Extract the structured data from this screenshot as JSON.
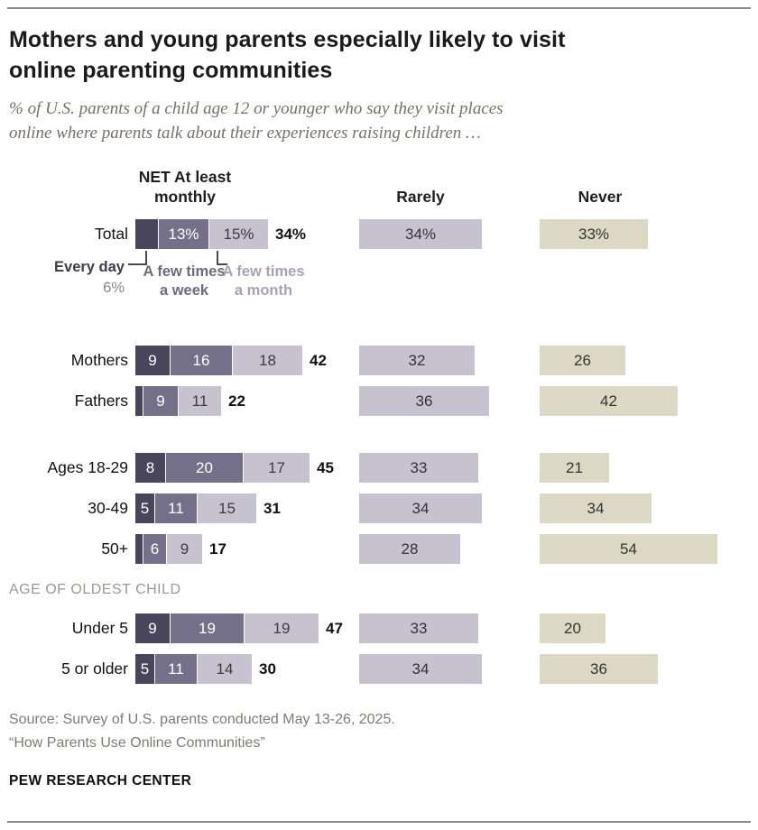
{
  "header": {
    "title_line1": "Mothers and young parents especially likely to visit",
    "title_line2": "online parenting communities",
    "subtitle_line1": "% of U.S. parents of a child age 12 or younger who say they visit places",
    "subtitle_line2": "online where parents talk about their experiences raising children …"
  },
  "columns": {
    "net": "NET At least monthly",
    "rarely": "Rarely",
    "never": "Never"
  },
  "annotation": {
    "every_day_label": "Every day",
    "every_day_value": "6%",
    "few_week_label": "A few times a week",
    "few_month_label": "A few times a month"
  },
  "section_label": "AGE OF OLDEST CHILD",
  "chart_data": {
    "type": "bar",
    "stacked": true,
    "unit": "%",
    "segment_names": [
      "Every day",
      "A few times a week",
      "A few times a month"
    ],
    "column_groups": [
      "NET At least monthly",
      "Rarely",
      "Never"
    ],
    "colors": {
      "every_day": "#49455a",
      "few_times_week": "#75708a",
      "few_times_month": "#c6c2cf",
      "rarely": "#c6c2cf",
      "never": "#dbd9c3"
    },
    "rows": [
      {
        "label": "Total",
        "segments": [
          6,
          13,
          15
        ],
        "segment_labels": [
          "",
          "13%",
          "15%"
        ],
        "net": 34,
        "net_label": "34%",
        "rarely": 34,
        "rarely_label": "34%",
        "never": 33,
        "never_label": "33%"
      },
      {
        "label": "Mothers",
        "segments": [
          9,
          16,
          18
        ],
        "segment_labels": [
          "9",
          "16",
          "18"
        ],
        "net": 42,
        "net_label": "42",
        "rarely": 32,
        "rarely_label": "32",
        "never": 26,
        "never_label": "26"
      },
      {
        "label": "Fathers",
        "segments": [
          2,
          9,
          11
        ],
        "segment_labels": [
          "",
          "9",
          "11"
        ],
        "net": 22,
        "net_label": "22",
        "rarely": 36,
        "rarely_label": "36",
        "never": 42,
        "never_label": "42"
      },
      {
        "label": "Ages 18-29",
        "segments": [
          8,
          20,
          17
        ],
        "segment_labels": [
          "8",
          "20",
          "17"
        ],
        "net": 45,
        "net_label": "45",
        "rarely": 33,
        "rarely_label": "33",
        "never": 21,
        "never_label": "21"
      },
      {
        "label": "30-49",
        "segments": [
          5,
          11,
          15
        ],
        "segment_labels": [
          "5",
          "11",
          "15"
        ],
        "net": 31,
        "net_label": "31",
        "rarely": 34,
        "rarely_label": "34",
        "never": 34,
        "never_label": "34"
      },
      {
        "label": "50+",
        "segments": [
          2,
          6,
          9
        ],
        "segment_labels": [
          "",
          "6",
          "9"
        ],
        "net": 17,
        "net_label": "17",
        "rarely": 28,
        "rarely_label": "28",
        "never": 54,
        "never_label": "54"
      },
      {
        "label": "Under 5",
        "segments": [
          9,
          19,
          19
        ],
        "segment_labels": [
          "9",
          "19",
          "19"
        ],
        "net": 47,
        "net_label": "47",
        "rarely": 33,
        "rarely_label": "33",
        "never": 20,
        "never_label": "20"
      },
      {
        "label": "5 or older",
        "segments": [
          5,
          11,
          14
        ],
        "segment_labels": [
          "5",
          "11",
          "14"
        ],
        "net": 30,
        "net_label": "30",
        "rarely": 34,
        "rarely_label": "34",
        "never": 36,
        "never_label": "36"
      }
    ]
  },
  "footer": {
    "source_line1": "Source: Survey of U.S. parents conducted May 13-26, 2025.",
    "source_line2": "“How Parents Use Online Communities”",
    "brand": "PEW RESEARCH CENTER"
  }
}
